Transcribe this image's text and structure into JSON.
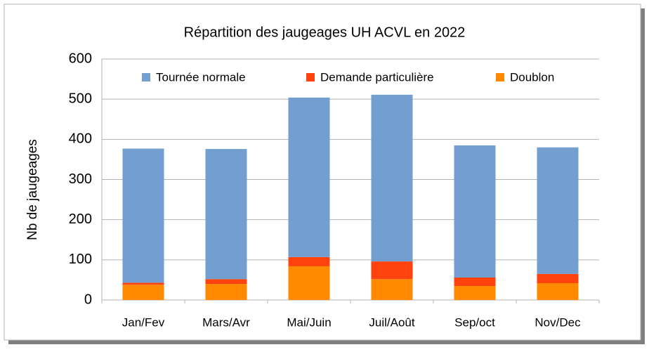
{
  "chart_data": {
    "type": "stacked_bar",
    "title": "Répartition des jaugeages UH ACVL en 2022",
    "y_label": "Nb de jaugeages",
    "categories": [
      "Jan/Fev",
      "Mars/Avr",
      "Mai/Juin",
      "Juil/Août",
      "Sep/oct",
      "Nov/Dec"
    ],
    "series": [
      {
        "name": "Tournée normale",
        "color": "#729fcf",
        "values": [
          334,
          324,
          397,
          415,
          329,
          315
        ]
      },
      {
        "name": "Demande particulière",
        "color": "#ff420e",
        "values": [
          5,
          12,
          23,
          44,
          21,
          23
        ]
      },
      {
        "name": "Doublon",
        "color": "#ff8a00",
        "values": [
          38,
          40,
          84,
          52,
          35,
          42
        ]
      }
    ],
    "ylim": [
      0,
      600
    ],
    "yticks": [
      0,
      100,
      200,
      300,
      400,
      500,
      600
    ],
    "grid": true,
    "legend": "top"
  }
}
